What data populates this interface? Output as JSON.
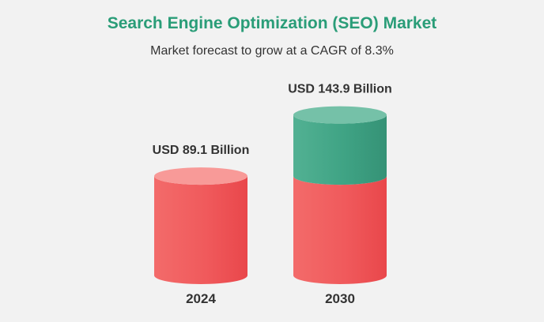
{
  "title": "Search Engine Optimization (SEO) Market",
  "subtitle": "Market forecast to grow at a CAGR of 8.3%",
  "colors": {
    "base": "#f05a5c",
    "growth": "#3fa384",
    "title": "#2a9d78",
    "background": "#f2f2f2"
  },
  "chart_data": {
    "type": "bar",
    "categories": [
      "2024",
      "2030"
    ],
    "values": [
      89.1,
      143.9
    ],
    "data_labels": [
      "USD 89.1 Billion",
      "USD 143.9 Billion"
    ],
    "stacked_segments": [
      {
        "values": [
          89.1,
          89.1
        ]
      },
      {
        "values": [
          0,
          54.8
        ]
      }
    ],
    "grid": false,
    "legend": "none"
  }
}
